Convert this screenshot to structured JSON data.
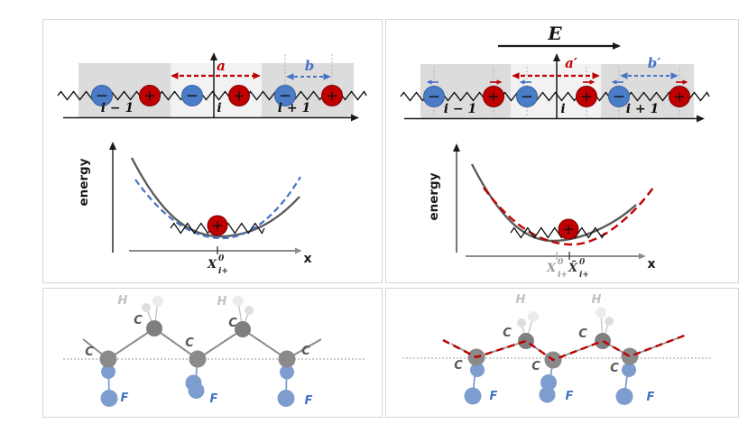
{
  "colors": {
    "positive_ion": "#c00000",
    "negative_ion": "#4a7cc7",
    "red_accent": "#c00000",
    "blue_accent": "#4472c4",
    "potential_curve_gray": "#5a5a5a",
    "unit_cell_shade": "#dcdcdc",
    "unit_cell_center_shade": "#f2f2f2",
    "carbon_atom": "#858585",
    "hydrogen_atom": "#e4e4e4",
    "fluorine_atom": "#7e9dcf"
  },
  "ion_signs": {
    "minus": "−",
    "plus": "+"
  },
  "atoms": {
    "carbon": "C",
    "hydrogen": "H",
    "fluorine": "F"
  },
  "top_left": {
    "cells": [
      "i − 1",
      "i",
      "i + 1"
    ],
    "label_a": "a",
    "label_b": "b",
    "energy_axis_label": "energy",
    "x_axis_label": "x",
    "equilibrium_tick": {
      "base": "X",
      "sup": "0",
      "sub": "i+"
    }
  },
  "top_right": {
    "field_label": "E",
    "cells": [
      "i − 1",
      "i",
      "i + 1"
    ],
    "label_a": "a′",
    "label_b": "b′",
    "energy_axis_label": "energy",
    "x_axis_label": "x",
    "old_equilibrium_tick": {
      "base": "X",
      "sup": "0",
      "sub": "i+"
    },
    "new_equilibrium_tick": {
      "base": "X̄",
      "sup": "0",
      "sub": "i+"
    }
  }
}
